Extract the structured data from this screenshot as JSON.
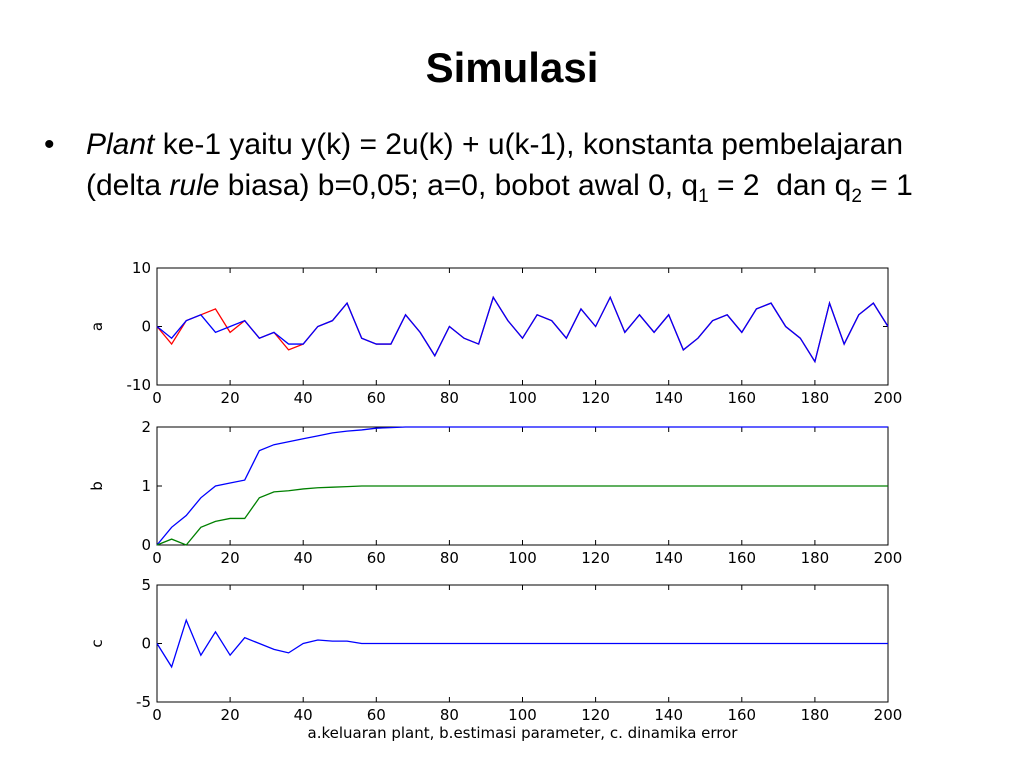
{
  "title": "Simulasi",
  "bullet": [
    "Plant",
    " ke-1 yaitu y(k) = 2u(k) + u(k-1), konstanta pembelajaran (delta ",
    "rule",
    " biasa) b=0,05; a=0, bobot awal 0, q",
    "1",
    " = 2  dan q",
    "2",
    " = 1"
  ],
  "chart_data": [
    {
      "type": "line",
      "ylabel": "a",
      "x": [
        0,
        4,
        8,
        12,
        16,
        20,
        24,
        28,
        32,
        36,
        40,
        44,
        48,
        52,
        56,
        60,
        64,
        68,
        72,
        76,
        80,
        84,
        88,
        92,
        96,
        100,
        104,
        108,
        112,
        116,
        120,
        124,
        128,
        132,
        136,
        140,
        144,
        148,
        152,
        156,
        160,
        164,
        168,
        172,
        176,
        180,
        184,
        188,
        192,
        196,
        200
      ],
      "series": [
        {
          "color": "#ff0000",
          "values": [
            0,
            -3,
            1,
            2,
            3,
            -1,
            1,
            -2,
            -1,
            -4,
            -3,
            0,
            1,
            4,
            -2,
            -3,
            -3,
            2,
            -1,
            -5,
            0,
            -2,
            -3,
            5,
            1,
            -2,
            2,
            1,
            -2,
            3,
            0,
            5,
            -1,
            2,
            -1,
            2,
            -4,
            -2,
            1,
            2,
            -1,
            3,
            4,
            0,
            -2,
            -6,
            4,
            -3,
            2,
            4,
            0
          ]
        },
        {
          "color": "#0000ff",
          "values": [
            0,
            -2,
            1,
            2,
            -1,
            0,
            1,
            -2,
            -1,
            -3,
            -3,
            0,
            1,
            4,
            -2,
            -3,
            -3,
            2,
            -1,
            -5,
            0,
            -2,
            -3,
            5,
            1,
            -2,
            2,
            1,
            -2,
            3,
            0,
            5,
            -1,
            2,
            -1,
            2,
            -4,
            -2,
            1,
            2,
            -1,
            3,
            4,
            0,
            -2,
            -6,
            4,
            -3,
            2,
            4,
            0
          ]
        }
      ],
      "xlim": [
        0,
        200
      ],
      "xticks": [
        0,
        20,
        40,
        60,
        80,
        100,
        120,
        140,
        160,
        180,
        200
      ],
      "ylim": [
        -10,
        10
      ],
      "yticks": [
        -10,
        0,
        10
      ]
    },
    {
      "type": "line",
      "ylabel": "b",
      "x": [
        0,
        4,
        8,
        12,
        16,
        20,
        24,
        28,
        32,
        36,
        40,
        44,
        48,
        52,
        56,
        60,
        64,
        68,
        72,
        76,
        80,
        84,
        88,
        92,
        96,
        100,
        104,
        108,
        112,
        116,
        120,
        124,
        128,
        132,
        136,
        140,
        144,
        148,
        152,
        156,
        160,
        164,
        168,
        172,
        176,
        180,
        184,
        188,
        192,
        196,
        200
      ],
      "series": [
        {
          "color": "#0000ff",
          "values": [
            0,
            0.3,
            0.5,
            0.8,
            1.0,
            1.05,
            1.1,
            1.6,
            1.7,
            1.75,
            1.8,
            1.85,
            1.9,
            1.93,
            1.95,
            1.98,
            1.99,
            2,
            2,
            2,
            2,
            2,
            2,
            2,
            2,
            2,
            2,
            2,
            2,
            2,
            2,
            2,
            2,
            2,
            2,
            2,
            2,
            2,
            2,
            2,
            2,
            2,
            2,
            2,
            2,
            2,
            2,
            2,
            2,
            2,
            2
          ]
        },
        {
          "color": "#008000",
          "values": [
            0,
            0.1,
            0,
            0.3,
            0.4,
            0.45,
            0.45,
            0.8,
            0.9,
            0.92,
            0.95,
            0.97,
            0.98,
            0.99,
            1,
            1,
            1,
            1,
            1,
            1,
            1,
            1,
            1,
            1,
            1,
            1,
            1,
            1,
            1,
            1,
            1,
            1,
            1,
            1,
            1,
            1,
            1,
            1,
            1,
            1,
            1,
            1,
            1,
            1,
            1,
            1,
            1,
            1,
            1,
            1,
            1
          ]
        }
      ],
      "xlim": [
        0,
        200
      ],
      "xticks": [
        0,
        20,
        40,
        60,
        80,
        100,
        120,
        140,
        160,
        180,
        200
      ],
      "ylim": [
        0,
        2
      ],
      "yticks": [
        0,
        1,
        2
      ]
    },
    {
      "type": "line",
      "ylabel": "c",
      "xlabel": "a.keluaran plant, b.estimasi parameter, c. dinamika error",
      "x": [
        0,
        4,
        8,
        12,
        16,
        20,
        24,
        28,
        32,
        36,
        40,
        44,
        48,
        52,
        56,
        60,
        64,
        68,
        72,
        76,
        80,
        84,
        88,
        92,
        96,
        100,
        104,
        108,
        112,
        116,
        120,
        124,
        128,
        132,
        136,
        140,
        144,
        148,
        152,
        156,
        160,
        164,
        168,
        172,
        176,
        180,
        184,
        188,
        192,
        196,
        200
      ],
      "series": [
        {
          "color": "#0000ff",
          "values": [
            0,
            -2,
            2,
            -1,
            1,
            -1,
            0.5,
            0,
            -0.5,
            -0.8,
            0,
            0.3,
            0.2,
            0.2,
            0,
            0,
            0,
            0,
            0,
            0,
            0,
            0,
            0,
            0,
            0,
            0,
            0,
            0,
            0,
            0,
            0,
            0,
            0,
            0,
            0,
            0,
            0,
            0,
            0,
            0,
            0,
            0,
            0,
            0,
            0,
            0,
            0,
            0,
            0,
            0,
            0
          ]
        }
      ],
      "xlim": [
        0,
        200
      ],
      "xticks": [
        0,
        20,
        40,
        60,
        80,
        100,
        120,
        140,
        160,
        180,
        200
      ],
      "ylim": [
        -5,
        5
      ],
      "yticks": [
        -5,
        0,
        5
      ]
    }
  ]
}
